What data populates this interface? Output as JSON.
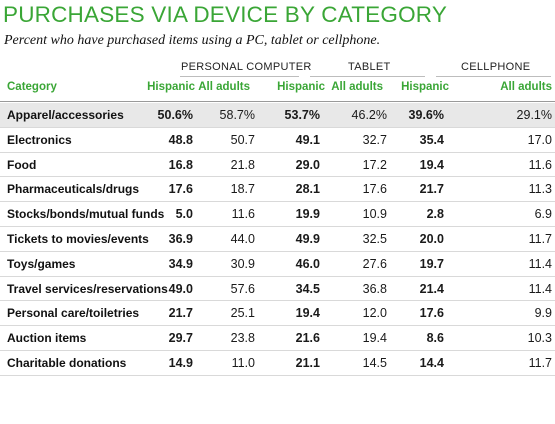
{
  "chart_data": {
    "type": "table",
    "title": "PURCHASES VIA DEVICE BY CATEGORY",
    "subtitle": "Percent who have purchased items using a PC, tablet or cellphone.",
    "column_groups": [
      "PERSONAL COMPUTER",
      "TABLET",
      "CELLPHONE"
    ],
    "columns": [
      "Category",
      "Hispanic",
      "All adults",
      "Hispanic",
      "All adults",
      "Hispanic",
      "All adults"
    ],
    "rows": [
      {
        "category": "Apparel/accessories",
        "values": [
          "50.6%",
          "58.7%",
          "53.7%",
          "46.2%",
          "39.6%",
          "29.1%"
        ]
      },
      {
        "category": "Electronics",
        "values": [
          "48.8",
          "50.7",
          "49.1",
          "32.7",
          "35.4",
          "17.0"
        ]
      },
      {
        "category": "Food",
        "values": [
          "16.8",
          "21.8",
          "29.0",
          "17.2",
          "19.4",
          "11.6"
        ]
      },
      {
        "category": "Pharmaceuticals/drugs",
        "values": [
          "17.6",
          "18.7",
          "28.1",
          "17.6",
          "21.7",
          "11.3"
        ]
      },
      {
        "category": "Stocks/bonds/mutual funds",
        "values": [
          "5.0",
          "11.6",
          "19.9",
          "10.9",
          "2.8",
          "6.9"
        ]
      },
      {
        "category": "Tickets to movies/events",
        "values": [
          "36.9",
          "44.0",
          "49.9",
          "32.5",
          "20.0",
          "11.7"
        ]
      },
      {
        "category": "Toys/games",
        "values": [
          "34.9",
          "30.9",
          "46.0",
          "27.6",
          "19.7",
          "11.4"
        ]
      },
      {
        "category": "Travel services/reservations",
        "values": [
          "49.0",
          "57.6",
          "34.5",
          "36.8",
          "21.4",
          "11.4"
        ]
      },
      {
        "category": "Personal care/toiletries",
        "values": [
          "21.7",
          "25.1",
          "19.4",
          "12.0",
          "17.6",
          "9.9"
        ]
      },
      {
        "category": "Auction items",
        "values": [
          "29.7",
          "23.8",
          "21.6",
          "19.4",
          "8.6",
          "10.3"
        ]
      },
      {
        "category": "Charitable donations",
        "values": [
          "14.9",
          "11.0",
          "21.1",
          "14.5",
          "14.4",
          "11.7"
        ]
      }
    ]
  },
  "colors": {
    "accent": "#3aa636",
    "highlight_row": "#e8e8e8"
  }
}
